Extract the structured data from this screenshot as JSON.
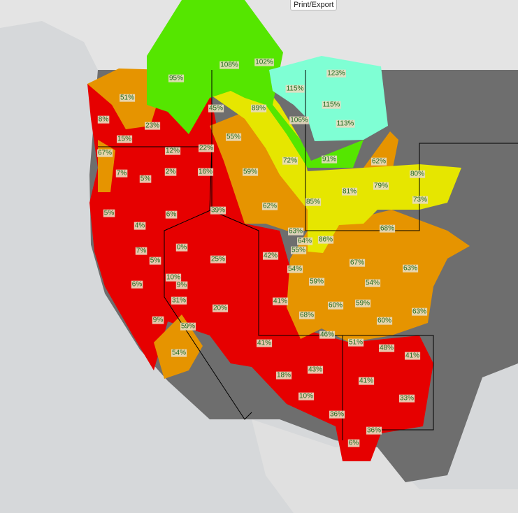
{
  "button": "Print/Export",
  "basins": [
    "95%",
    "108%",
    "102%",
    "123%",
    "115%",
    "51%",
    "45%",
    "89%",
    "115%",
    "8%",
    "106%",
    "113%",
    "23%",
    "15%",
    "55%",
    "12%",
    "22%",
    "67%",
    "91%",
    "72%",
    "62%",
    "7%",
    "2%",
    "16%",
    "59%",
    "80%",
    "5%",
    "81%",
    "79%",
    "73%",
    "85%",
    "62%",
    "5%",
    "6%",
    "39%",
    "68%",
    "4%",
    "63%",
    "64%",
    "86%",
    "0%",
    "55%",
    "7%",
    "42%",
    "25%",
    "5%",
    "67%",
    "54%",
    "63%",
    "10%",
    "6%",
    "9%",
    "59%",
    "54%",
    "31%",
    "41%",
    "60%",
    "59%",
    "20%",
    "63%",
    "68%",
    "9%",
    "60%",
    "59%",
    "46%",
    "51%",
    "41%",
    "48%",
    "54%",
    "41%",
    "43%",
    "18%",
    "41%",
    "10%",
    "33%",
    "36%",
    "36%",
    "6%"
  ]
}
